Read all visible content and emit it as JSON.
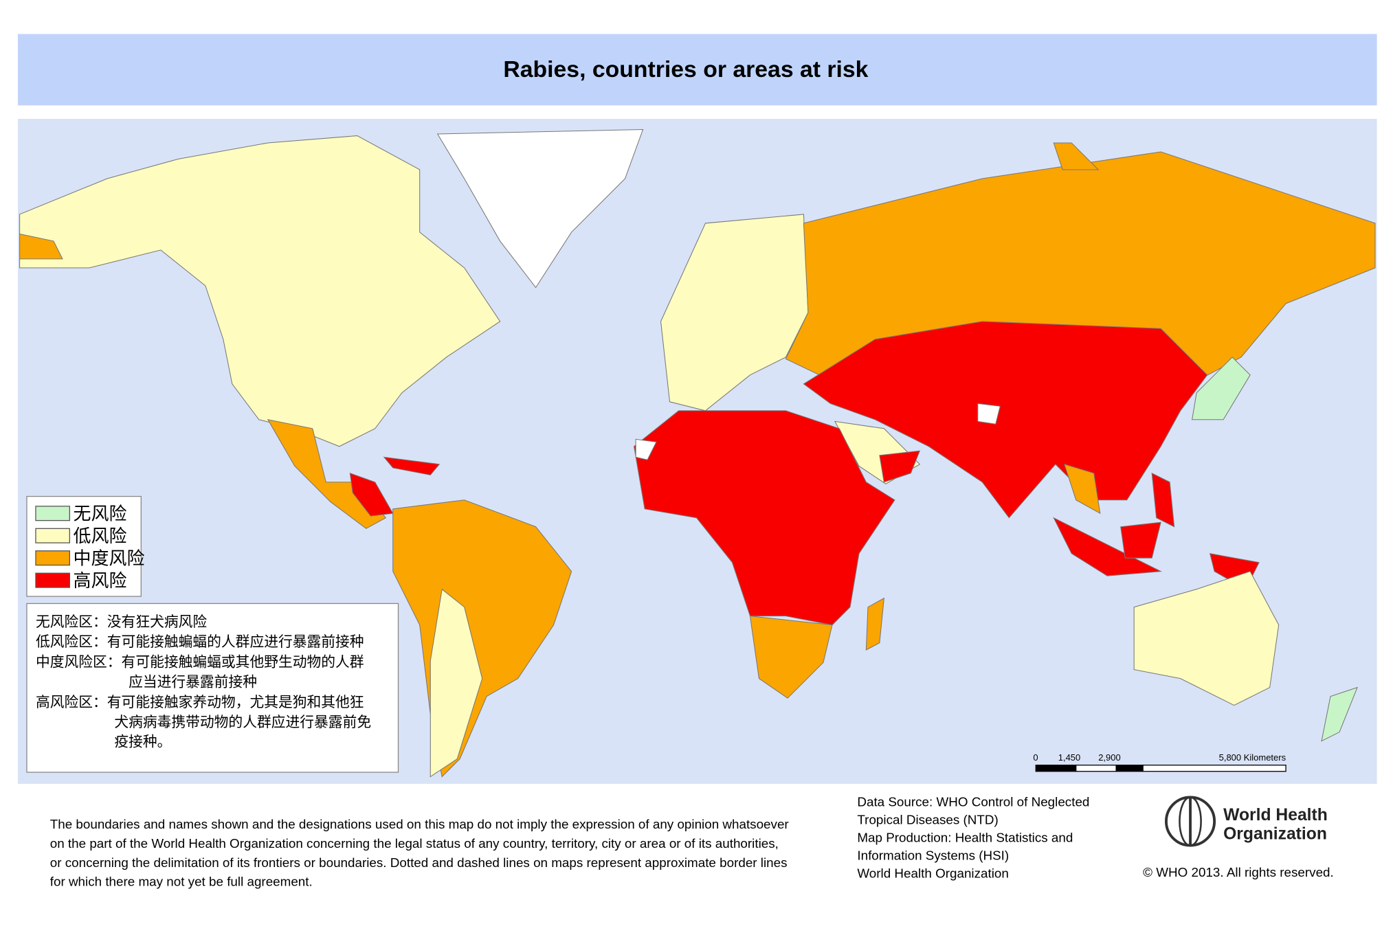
{
  "title": "Rabies, countries or areas at risk",
  "legend": [
    {
      "label": "无风险",
      "color": "#c8f5c8"
    },
    {
      "label": "低风险",
      "color": "#fffcbf"
    },
    {
      "label": "中度风险",
      "color": "#fba500"
    },
    {
      "label": "高风险",
      "color": "#f80000"
    }
  ],
  "notes": [
    "无风险区：没有狂犬病风险",
    "低风险区：有可能接触蝙蝠的人群应进行暴露前接种",
    "中度风险区：有可能接触蝙蝠或其他野生动物的人群",
    "应当进行暴露前接种",
    "高风险区：有可能接触家养动物，尤其是狗和其他狂",
    "犬病病毒携带动物的人群应进行暴露前免",
    "疫接种。"
  ],
  "scale_bar": {
    "labels": [
      "0",
      "1,450",
      "2,900",
      "5,800 Kilometers"
    ]
  },
  "disclaimer": [
    "The boundaries and names shown and the designations used on this map do not imply the expression of any opinion whatsoever",
    "on the part of the World Health Organization concerning the legal status of any country, territory, city or area or of its authorities,",
    "or concerning the delimitation of its frontiers or boundaries. Dotted and dashed lines on maps represent approximate border lines",
    "for which there may not yet be full agreement."
  ],
  "source": [
    "Data Source: WHO Control of Neglected",
    "Tropical Diseases (NTD)",
    "Map Production: Health Statistics and",
    "Information Systems (HSI)",
    "World Health Organization"
  ],
  "logo": [
    "World Health",
    "Organization"
  ],
  "copyright": "© WHO 2013. All rights reserved."
}
